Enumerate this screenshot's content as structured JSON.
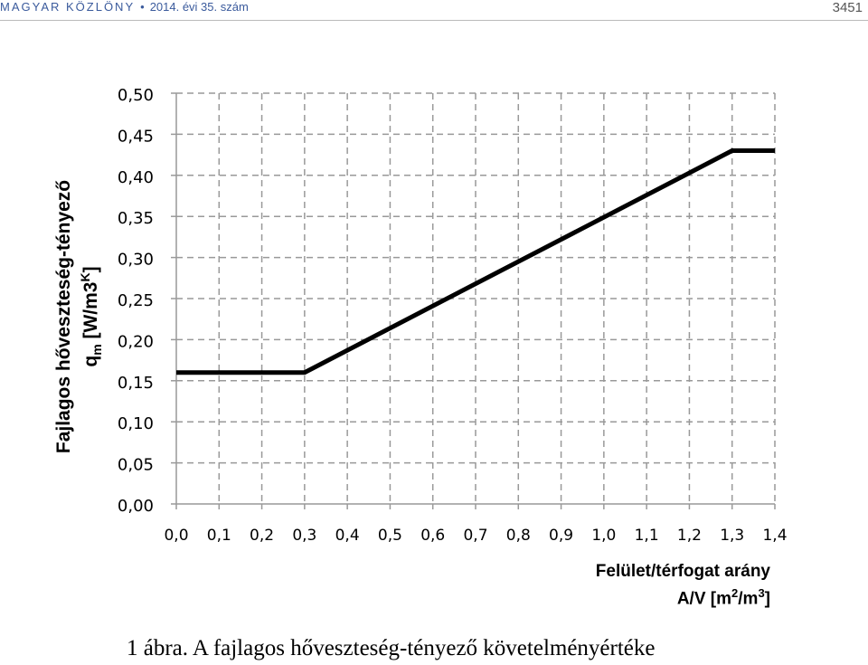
{
  "header": {
    "publication": "MAGYAR KÖZLÖNY",
    "separator": "•",
    "issue": "2014. évi 35. szám",
    "page_number": "3451"
  },
  "caption": "1 ábra. A fajlagos hőveszteség-tényező követelményértéke",
  "chart_data": {
    "type": "line",
    "ylabel_line1": "Fajlagos hőveszteség-tényező",
    "ylabel_line2": "qm [W/m3K]",
    "xlabel_line1": "Felület/térfogat arány",
    "xlabel_line2": "A/V [m2/m3]",
    "x_ticks": [
      "0,0",
      "0,1",
      "0,2",
      "0,3",
      "0,4",
      "0,5",
      "0,6",
      "0,7",
      "0,8",
      "0,9",
      "1,0",
      "1,1",
      "1,2",
      "1,3",
      "1,4"
    ],
    "y_ticks": [
      "0,00",
      "0,05",
      "0,10",
      "0,15",
      "0,20",
      "0,25",
      "0,30",
      "0,35",
      "0,40",
      "0,45",
      "0,50"
    ],
    "xlim": [
      0,
      1.4
    ],
    "ylim": [
      0,
      0.5
    ],
    "grid": true,
    "grid_style": "dashed",
    "series": [
      {
        "x": [
          0.0,
          0.3,
          1.3,
          1.4
        ],
        "y": [
          0.16,
          0.16,
          0.43,
          0.43
        ]
      }
    ],
    "colors": {
      "line": "#000000",
      "grid": "#999999"
    }
  }
}
